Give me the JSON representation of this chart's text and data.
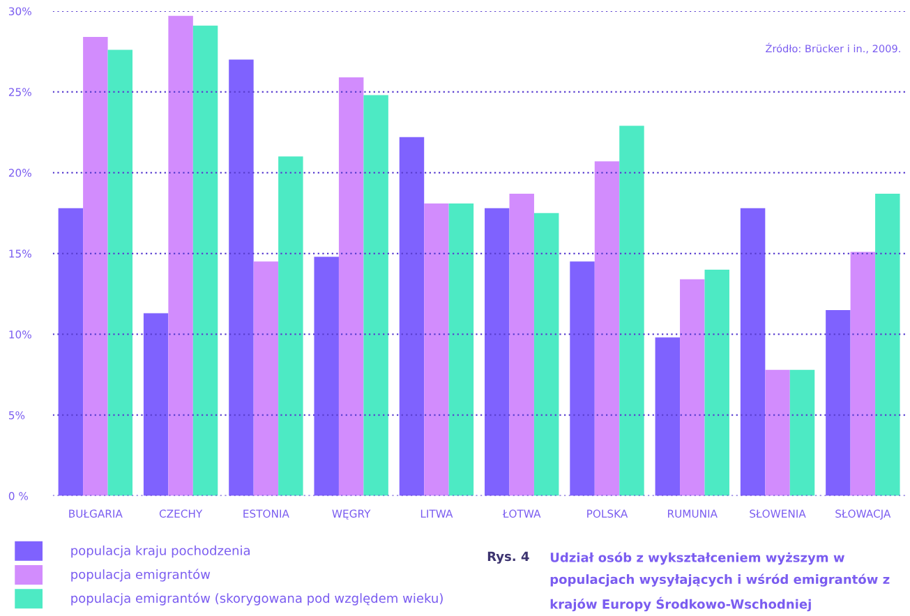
{
  "chart_data": {
    "type": "bar",
    "title": "Udział osób z wykształceniem wyższym w populacjach wysyłających i wśród emigrantów z krajów Europy Środkowo-Wschodniej",
    "annotations": [
      "Rys. 4",
      "Źródło: Brücker i in., 2009."
    ],
    "categories": [
      "BUŁGARIA",
      "CZECHY",
      "ESTONIA",
      "WĘGRY",
      "LITWA",
      "ŁOTWA",
      "POLSKA",
      "RUMUNIA",
      "SŁOWENIA",
      "SŁOWACJA"
    ],
    "series": [
      {
        "name": "populacja kraju pochodzenia",
        "color": "#7f62fe",
        "values": [
          17.8,
          11.3,
          27.0,
          14.8,
          22.2,
          17.8,
          14.5,
          9.8,
          17.8,
          11.5
        ]
      },
      {
        "name": "populacja emigrantów",
        "color": "#d28cfd",
        "values": [
          28.4,
          29.7,
          14.5,
          25.9,
          18.1,
          18.7,
          20.7,
          13.4,
          7.8,
          15.1
        ]
      },
      {
        "name": "populacja emigrantów (skorygowana pod względem wieku)",
        "color": "#4deac4",
        "values": [
          27.6,
          29.1,
          21.0,
          24.8,
          18.1,
          17.5,
          22.9,
          14.0,
          7.8,
          18.7
        ]
      }
    ],
    "ylim": [
      0,
      30
    ],
    "yticks": [
      {
        "value": 0,
        "label": "0 %"
      },
      {
        "value": 5,
        "label": "5%"
      },
      {
        "value": 10,
        "label": "10%"
      },
      {
        "value": 15,
        "label": "15%"
      },
      {
        "value": 20,
        "label": "20%"
      },
      {
        "value": 25,
        "label": "25%"
      },
      {
        "value": 30,
        "label": "30%"
      }
    ],
    "grid": "y",
    "legend": "bottom left"
  }
}
